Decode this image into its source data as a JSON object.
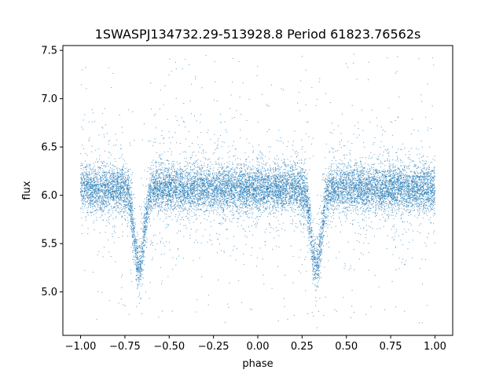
{
  "chart_data": {
    "type": "scatter",
    "title": "1SWASPJ134732.29-513928.8 Period 61823.76562s",
    "xlabel": "phase",
    "ylabel": "flux",
    "xlim": [
      -1.1,
      1.1
    ],
    "ylim": [
      4.55,
      7.55
    ],
    "xticks": [
      -1.0,
      -0.75,
      -0.5,
      -0.25,
      0.0,
      0.25,
      0.5,
      0.75,
      1.0
    ],
    "xtick_labels": [
      "−1.00",
      "−0.75",
      "−0.50",
      "−0.25",
      "0.00",
      "0.25",
      "0.50",
      "0.75",
      "1.00"
    ],
    "yticks": [
      5.0,
      5.5,
      6.0,
      6.5,
      7.0,
      7.5
    ],
    "ytick_labels": [
      "5.0",
      "5.5",
      "6.0",
      "6.5",
      "7.0",
      "7.5"
    ],
    "grid": false,
    "color": "#1f77b4",
    "x_range": [
      -1.0,
      1.0
    ],
    "baseline_flux": 6.07,
    "eclipses": [
      {
        "phase": -0.67,
        "min_flux": 5.25
      },
      {
        "phase": 0.33,
        "min_flux": 5.25
      }
    ],
    "approx_point_count": 14000
  }
}
